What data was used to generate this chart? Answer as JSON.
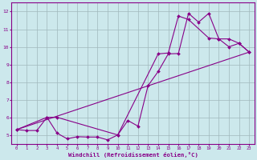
{
  "xlabel": "Windchill (Refroidissement éolien,°C)",
  "xlim": [
    -0.5,
    23.5
  ],
  "ylim": [
    4.5,
    12.5
  ],
  "bg_color": "#cce8ec",
  "line_color": "#880088",
  "grid_color": "#a0b8bc",
  "yticks": [
    5,
    6,
    7,
    8,
    9,
    10,
    11,
    12
  ],
  "xticks": [
    0,
    1,
    2,
    3,
    4,
    5,
    6,
    7,
    8,
    9,
    10,
    11,
    12,
    13,
    14,
    15,
    16,
    17,
    18,
    19,
    20,
    21,
    22,
    23
  ],
  "line1_x": [
    0,
    1,
    2,
    3,
    4,
    5,
    6,
    7,
    8,
    9,
    10,
    11,
    12,
    13,
    14,
    15,
    16,
    17,
    18,
    19,
    20,
    21,
    22,
    23
  ],
  "line1_y": [
    5.3,
    5.25,
    5.25,
    6.0,
    5.1,
    4.78,
    4.9,
    4.88,
    4.88,
    4.72,
    5.0,
    5.82,
    5.5,
    7.8,
    8.6,
    9.6,
    9.62,
    11.9,
    11.4,
    11.9,
    10.45,
    10.0,
    10.2,
    9.7
  ],
  "line2_x": [
    0,
    3,
    4,
    10,
    14,
    15,
    16,
    17,
    19,
    20,
    21,
    22,
    23
  ],
  "line2_y": [
    5.3,
    6.0,
    6.0,
    5.0,
    9.6,
    9.65,
    11.75,
    11.55,
    10.5,
    10.45,
    10.45,
    10.2,
    9.7
  ],
  "line3_x": [
    0,
    23
  ],
  "line3_y": [
    5.3,
    9.7
  ]
}
